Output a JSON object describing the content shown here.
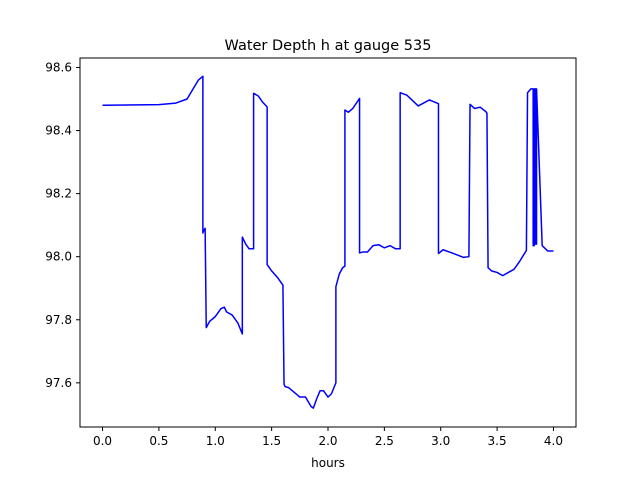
{
  "chart_data": {
    "type": "line",
    "title": "Water Depth h at gauge 535",
    "xlabel": "hours",
    "ylabel": "",
    "xlim": [
      -0.2,
      4.2
    ],
    "ylim": [
      97.46,
      98.63
    ],
    "x_ticks": [
      0.0,
      0.5,
      1.0,
      1.5,
      2.0,
      2.5,
      3.0,
      3.5,
      4.0
    ],
    "x_tick_labels": [
      "0.0",
      "0.5",
      "1.0",
      "1.5",
      "2.0",
      "2.5",
      "3.0",
      "3.5",
      "4.0"
    ],
    "y_ticks": [
      97.6,
      97.8,
      98.0,
      98.2,
      98.4,
      98.6
    ],
    "y_tick_labels": [
      "97.6",
      "97.8",
      "98.0",
      "98.2",
      "98.4",
      "98.6"
    ],
    "grid": false,
    "line_color": "#0000ff",
    "series": [
      {
        "x": [
          0.0,
          0.5,
          0.65,
          0.75,
          0.8,
          0.85,
          0.89,
          0.89,
          0.9,
          0.91,
          0.92,
          0.92,
          0.95,
          1.0,
          1.05,
          1.08,
          1.1,
          1.15,
          1.2,
          1.24,
          1.24,
          1.27,
          1.3,
          1.34,
          1.34,
          1.38,
          1.42,
          1.46,
          1.46,
          1.5,
          1.55,
          1.6,
          1.61,
          1.62,
          1.65,
          1.7,
          1.75,
          1.8,
          1.85,
          1.87,
          1.9,
          1.93,
          1.96,
          2.0,
          2.03,
          2.07,
          2.07,
          2.1,
          2.13,
          2.15,
          2.15,
          2.18,
          2.22,
          2.28,
          2.28,
          2.31,
          2.35,
          2.4,
          2.45,
          2.5,
          2.55,
          2.6,
          2.64,
          2.64,
          2.7,
          2.8,
          2.9,
          2.98,
          2.98,
          3.02,
          3.1,
          3.2,
          3.25,
          3.26,
          3.3,
          3.35,
          3.4,
          3.41,
          3.42,
          3.45,
          3.5,
          3.55,
          3.6,
          3.65,
          3.7,
          3.76,
          3.77,
          3.8,
          3.82,
          3.82,
          3.83,
          3.83,
          3.84,
          3.84,
          3.85,
          3.85,
          3.9,
          3.95,
          4.0
        ],
        "y": [
          98.48,
          98.482,
          98.487,
          98.5,
          98.53,
          98.56,
          98.572,
          98.075,
          98.085,
          98.09,
          97.775,
          97.775,
          97.795,
          97.81,
          97.835,
          97.84,
          97.825,
          97.815,
          97.79,
          97.755,
          98.062,
          98.04,
          98.025,
          98.025,
          98.518,
          98.51,
          98.49,
          98.475,
          97.975,
          97.955,
          97.935,
          97.91,
          97.595,
          97.588,
          97.585,
          97.57,
          97.555,
          97.555,
          97.525,
          97.52,
          97.55,
          97.575,
          97.575,
          97.555,
          97.565,
          97.6,
          97.905,
          97.945,
          97.965,
          97.97,
          98.465,
          98.458,
          98.47,
          98.502,
          98.012,
          98.015,
          98.015,
          98.035,
          98.038,
          98.028,
          98.035,
          98.025,
          98.025,
          98.52,
          98.512,
          98.478,
          98.497,
          98.485,
          98.01,
          98.022,
          98.012,
          97.998,
          98.0,
          98.483,
          98.47,
          98.474,
          98.46,
          98.455,
          97.965,
          97.955,
          97.95,
          97.94,
          97.95,
          97.96,
          97.985,
          98.02,
          98.52,
          98.532,
          98.532,
          98.035,
          98.035,
          98.532,
          98.532,
          98.04,
          98.04,
          98.532,
          98.035,
          98.018,
          98.018
        ]
      }
    ]
  }
}
